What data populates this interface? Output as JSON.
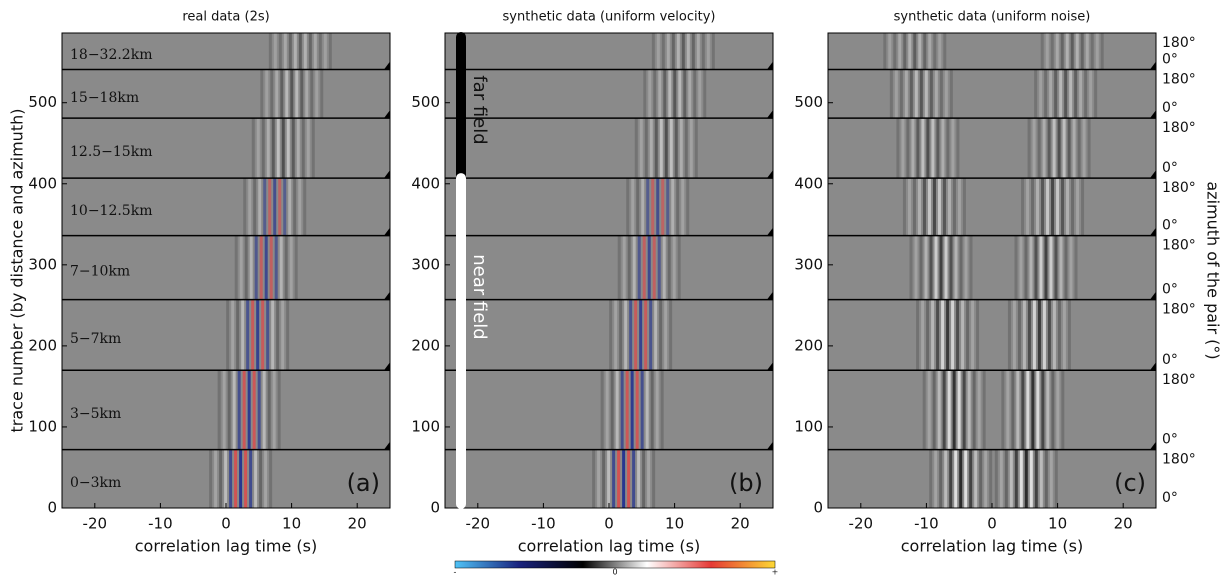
{
  "chart_data": [
    {
      "type": "heatmap",
      "title": "real data (2s)",
      "xlabel": "correlation lag time (s)",
      "ylabel": "trace number (by distance and azimuth)",
      "xlim": [
        -25,
        25
      ],
      "xticks": [
        -20,
        -10,
        0,
        10,
        20
      ],
      "ylim": [
        0,
        586
      ],
      "yticks": [
        0,
        100,
        200,
        300,
        400,
        500
      ],
      "boundaries": [
        72,
        170,
        257,
        336,
        407,
        481,
        541
      ],
      "band_labels": [
        "0−3km",
        "3−5km",
        "5−7km",
        "7−10km",
        "10−12.5km",
        "12.5−15km",
        "15−18km",
        "18−32.2km"
      ],
      "panel_label": "(a)"
    },
    {
      "type": "heatmap",
      "title": "synthetic data (uniform velocity)",
      "xlabel": "correlation lag time (s)",
      "xlim": [
        -25,
        25
      ],
      "xticks": [
        -20,
        -10,
        0,
        10,
        20
      ],
      "ylim": [
        0,
        586
      ],
      "yticks": [
        0,
        100,
        200,
        300,
        400,
        500
      ],
      "boundaries": [
        72,
        170,
        257,
        336,
        407,
        481,
        541
      ],
      "annotations": [
        "far field",
        "near field"
      ],
      "colorbar_labels": [
        "-",
        "0",
        "+"
      ],
      "panel_label": "(b)"
    },
    {
      "type": "heatmap",
      "title": "synthetic data (uniform noise)",
      "xlabel": "correlation lag time (s)",
      "y2label": "azimuth of the pair (°)",
      "xlim": [
        -25,
        25
      ],
      "xticks": [
        -20,
        -10,
        0,
        10,
        20
      ],
      "ylim": [
        0,
        586
      ],
      "yticks": [
        0,
        100,
        200,
        300,
        400,
        500
      ],
      "boundaries": [
        72,
        170,
        257,
        336,
        407,
        481,
        541
      ],
      "azimuth_labels": [
        "180°",
        "0°"
      ],
      "panel_label": "(c)"
    }
  ]
}
